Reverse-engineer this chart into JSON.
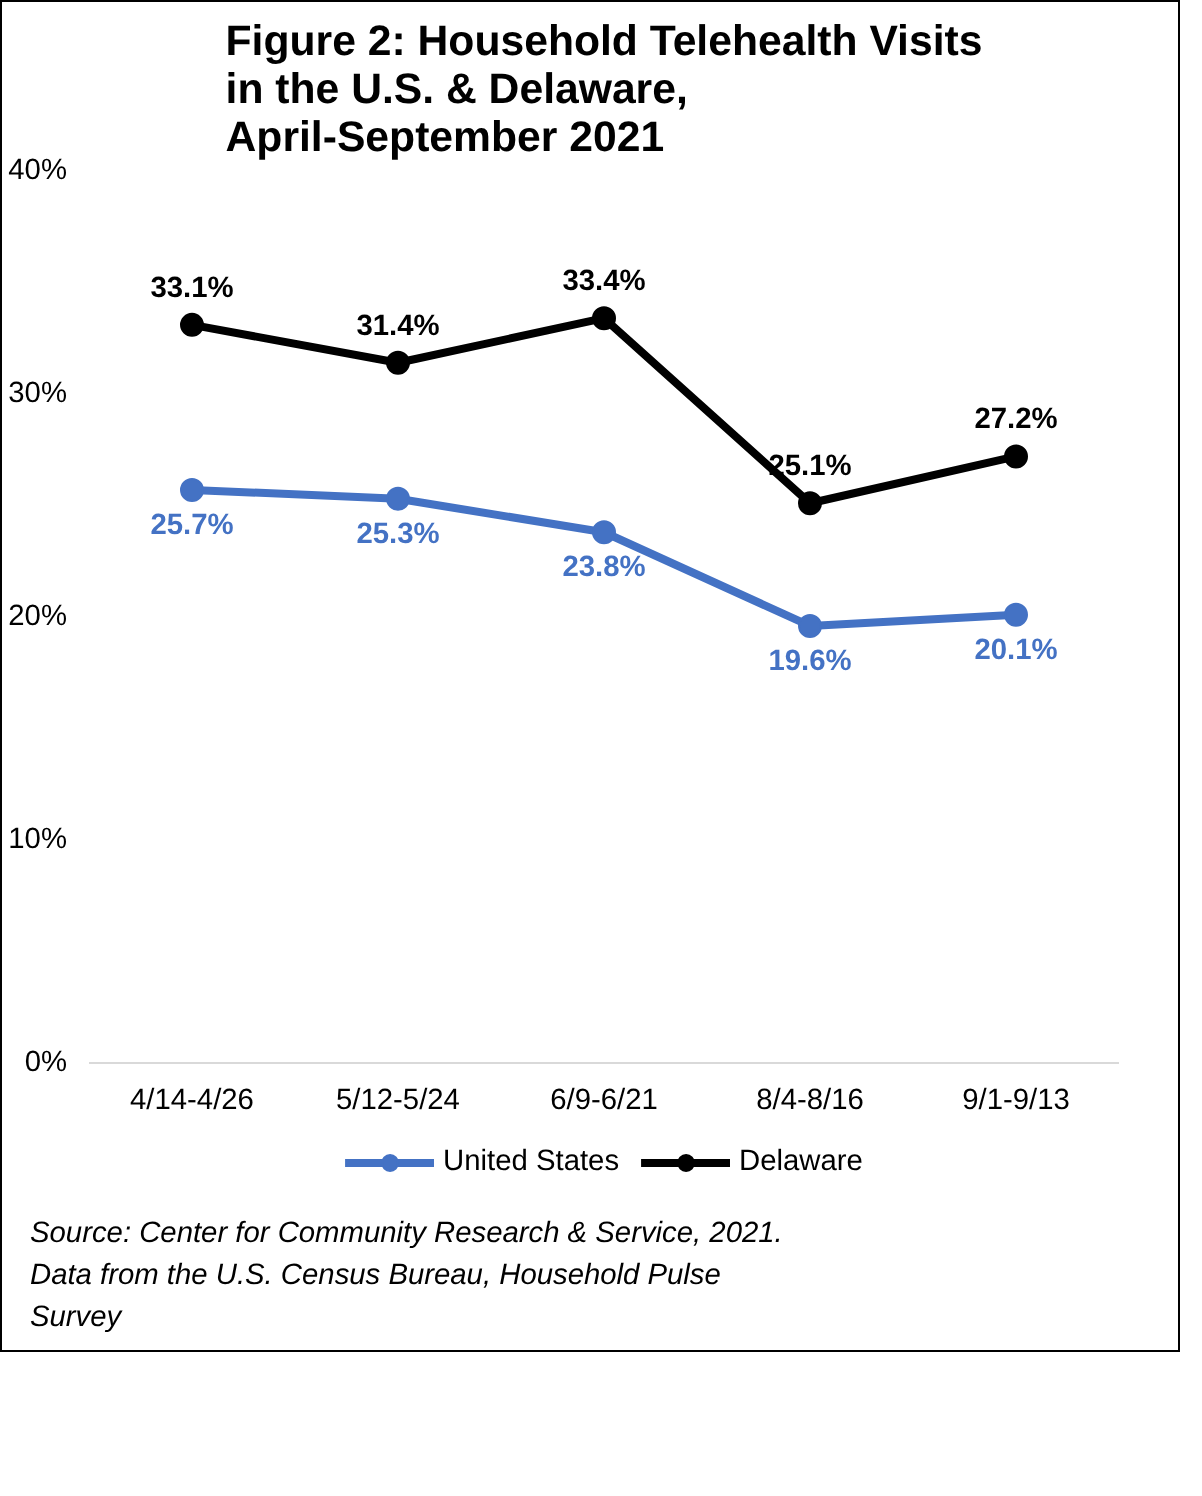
{
  "chart_data": {
    "type": "line",
    "title": "Figure 2: Household Telehealth Visits in the U.S. & Delaware, April-September 2021",
    "categories": [
      "4/14-4/26",
      "5/12-5/24",
      "6/9-6/21",
      "8/4-8/16",
      "9/1-9/13"
    ],
    "series": [
      {
        "name": "United States",
        "color": "#4472c4",
        "values": [
          25.7,
          25.3,
          23.8,
          19.6,
          20.1
        ],
        "value_labels": [
          "25.7%",
          "25.3%",
          "23.8%",
          "19.6%",
          "20.1%"
        ]
      },
      {
        "name": "Delaware",
        "color": "#000000",
        "values": [
          33.1,
          31.4,
          33.4,
          25.1,
          27.2
        ],
        "value_labels": [
          "33.1%",
          "31.4%",
          "33.4%",
          "25.1%",
          "27.2%"
        ]
      }
    ],
    "ylim": [
      0,
      40
    ],
    "yticks": [
      {
        "value": 0,
        "label": "0%"
      },
      {
        "value": 10,
        "label": "10%"
      },
      {
        "value": 20,
        "label": "20%"
      },
      {
        "value": 30,
        "label": "30%"
      },
      {
        "value": 40,
        "label": "40%"
      }
    ],
    "marker": "circle",
    "legend": "bottom",
    "grid": false,
    "annotations": [
      "Source: Center for Community Research & Service, 2021.",
      "Data from the U.S. Census Bureau, Household Pulse Survey"
    ]
  }
}
